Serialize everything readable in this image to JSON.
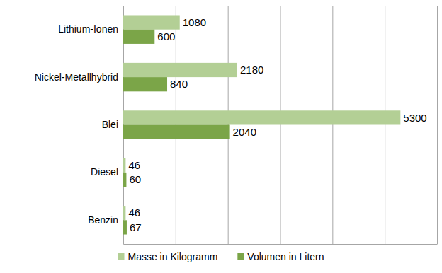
{
  "chart_data": {
    "type": "bar",
    "orientation": "horizontal",
    "categories": [
      "Lithium-Ionen",
      "Nickel-Metallhybrid",
      "Blei",
      "Diesel",
      "Benzin"
    ],
    "series": [
      {
        "name": "Masse in Kilogramm",
        "color": "#b3cf95",
        "values": [
          1080,
          2180,
          5300,
          46,
          46
        ]
      },
      {
        "name": "Volumen in Litern",
        "color": "#7ba548",
        "values": [
          600,
          840,
          2040,
          60,
          67
        ]
      }
    ],
    "xlim": [
      0,
      6000
    ],
    "xticks": [
      0,
      1000,
      2000,
      3000,
      4000,
      5000,
      6000
    ],
    "grid": true,
    "legend": "bottom",
    "data_labels": true,
    "tick_labels": "y"
  }
}
